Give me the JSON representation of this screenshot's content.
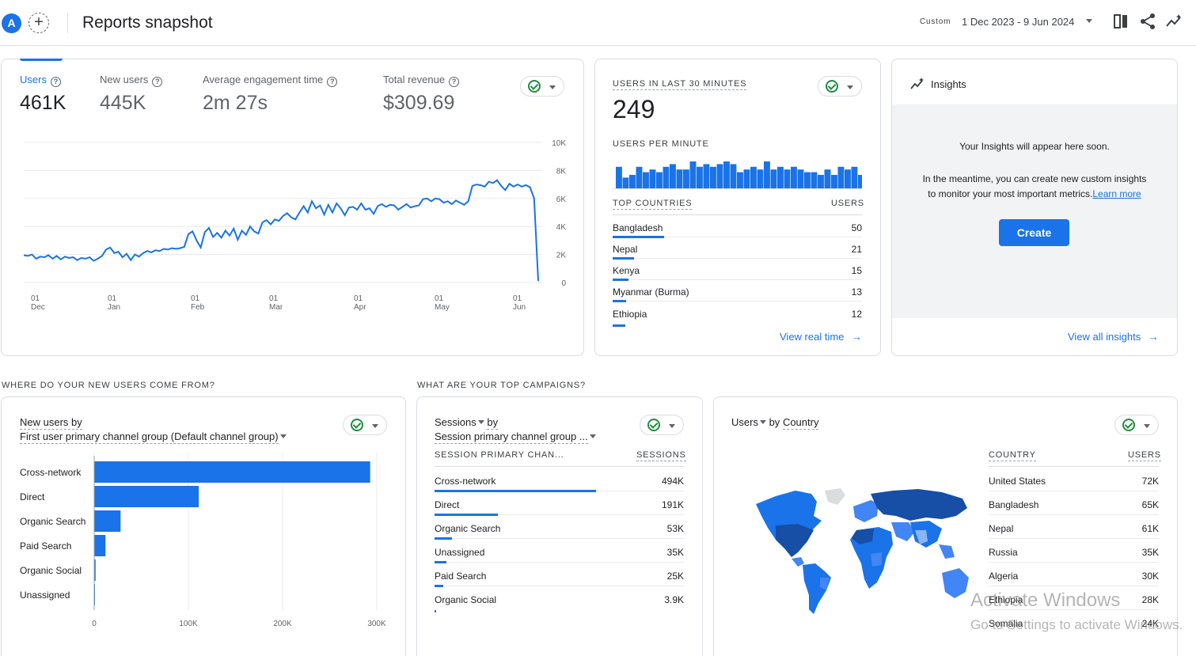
{
  "header": {
    "avatar_letter": "A",
    "add_label": "+",
    "title": "Reports snapshot",
    "date_chip": "Custom",
    "date_range": "1 Dec 2023 - 9 Jun 2024",
    "icons": [
      "compare-icon",
      "share-icon",
      "insights-trend-icon"
    ]
  },
  "overview": {
    "metrics": [
      {
        "label": "Users",
        "value": "461K",
        "active": true
      },
      {
        "label": "New users",
        "value": "445K",
        "active": false
      },
      {
        "label": "Average engagement time",
        "value": "2m 27s",
        "active": false
      },
      {
        "label": "Total revenue",
        "value": "$309.69",
        "active": false
      }
    ],
    "chart_data": {
      "type": "line",
      "series": [
        {
          "values": [
            1950,
            1900,
            2000,
            1700,
            1850,
            1800,
            1950,
            1700,
            1900,
            1650,
            1850,
            1750,
            1800,
            1600,
            1750,
            1700,
            1800,
            1550,
            1700,
            1900,
            2350,
            2500,
            2100,
            2200,
            1800,
            2050,
            1600,
            2000,
            1850,
            2100,
            2250,
            2150,
            2300,
            2250,
            2400,
            2350,
            2450,
            2400,
            2450,
            2550,
            3450,
            3650,
            3000,
            2500,
            3600,
            3900,
            3250,
            3550,
            3200,
            3700,
            3350,
            3850,
            3050,
            3700,
            3400,
            4000,
            3650,
            3500,
            4300,
            4450,
            4150,
            4500,
            4400,
            4750,
            4950,
            4650,
            4500,
            5000,
            5450,
            5000,
            5800,
            5300,
            5500,
            4850,
            5550,
            5000,
            5650,
            5300,
            4800,
            5350,
            5400,
            5200,
            5650,
            5200,
            5300,
            4900,
            5450,
            5600,
            5400,
            5550,
            5500,
            5200,
            5400,
            5600,
            5350,
            5450,
            5500,
            5950,
            6000,
            5800,
            6000,
            5950,
            5700,
            5800,
            5600,
            5850,
            5700,
            5550,
            5800,
            6900,
            7000,
            6950,
            6850,
            7200,
            7100,
            7300,
            6900,
            6600,
            7050,
            6850,
            7000,
            6850,
            6950,
            6800,
            6000,
            100
          ]
        }
      ],
      "x_tick_labels": [
        {
          "day": "01",
          "month": "Dec"
        },
        {
          "day": "01",
          "month": "Jan"
        },
        {
          "day": "01",
          "month": "Feb"
        },
        {
          "day": "01",
          "month": "Mar"
        },
        {
          "day": "01",
          "month": "Apr"
        },
        {
          "day": "01",
          "month": "May"
        },
        {
          "day": "01",
          "month": "Jun"
        }
      ],
      "y_ticks": [
        "10K",
        "8K",
        "6K",
        "4K",
        "2K",
        "0"
      ],
      "ylim": [
        0,
        10000
      ],
      "grid": true
    }
  },
  "realtime": {
    "title": "USERS IN LAST 30 MINUTES",
    "value": "249",
    "per_minute_label": "USERS PER MINUTE",
    "per_minute": [
      8,
      4,
      5,
      8,
      6,
      7,
      6,
      8,
      9,
      7,
      7,
      10,
      8,
      9,
      8,
      9,
      10,
      9,
      6,
      7,
      8,
      7,
      10,
      7,
      8,
      7,
      8,
      7,
      6,
      6,
      5,
      7,
      5,
      8,
      7,
      8,
      5,
      6,
      6,
      5
    ],
    "countries_header": "TOP COUNTRIES",
    "users_header": "USERS",
    "rows": [
      {
        "name": "Bangladesh",
        "value": "50",
        "share": 1.0
      },
      {
        "name": "Nepal",
        "value": "21",
        "share": 0.42
      },
      {
        "name": "Kenya",
        "value": "15",
        "share": 0.3
      },
      {
        "name": "Myanmar (Burma)",
        "value": "13",
        "share": 0.26
      },
      {
        "name": "Ethiopia",
        "value": "12",
        "share": 0.24
      }
    ],
    "link": "View real time"
  },
  "insights": {
    "title": "Insights",
    "headline": "Your Insights will appear here soon.",
    "body_1": "In the meantime, you can create new custom insights",
    "body_2": "to monitor your most important metrics.",
    "learn_more": "Learn more",
    "create": "Create",
    "link": "View all insights"
  },
  "sections": {
    "new_users_q": "WHERE DO YOUR NEW USERS COME FROM?",
    "campaigns_q": "WHAT ARE YOUR TOP CAMPAIGNS?"
  },
  "new_users": {
    "title_1": "New users by",
    "title_2": "First user primary channel group (Default channel group)",
    "chart_data": {
      "type": "bar",
      "categories": [
        "Cross-network",
        "Direct",
        "Organic Search",
        "Paid Search",
        "Organic Social",
        "Unassigned"
      ],
      "values": [
        293000,
        111000,
        28000,
        12000,
        1500,
        800
      ],
      "x_ticks": [
        "0",
        "100K",
        "200K",
        "300K"
      ],
      "xlim": [
        0,
        300000
      ]
    }
  },
  "sessions": {
    "title_1": "Sessions",
    "title_1b": "by",
    "title_2": "Session primary channel group ...",
    "col_1": "SESSION PRIMARY CHAN...",
    "col_2": "SESSIONS",
    "rows": [
      {
        "name": "Cross-network",
        "value": "494K",
        "share": 1.0
      },
      {
        "name": "Direct",
        "value": "191K",
        "share": 0.39
      },
      {
        "name": "Organic Search",
        "value": "53K",
        "share": 0.11
      },
      {
        "name": "Unassigned",
        "value": "35K",
        "share": 0.07
      },
      {
        "name": "Paid Search",
        "value": "25K",
        "share": 0.05
      },
      {
        "name": "Organic Social",
        "value": "3.9K",
        "share": 0.01
      }
    ]
  },
  "country": {
    "title_1": "Users",
    "title_2": "by",
    "title_3": "Country",
    "col_1": "COUNTRY",
    "col_2": "USERS",
    "rows": [
      {
        "name": "United States",
        "value": "72K"
      },
      {
        "name": "Bangladesh",
        "value": "65K"
      },
      {
        "name": "Nepal",
        "value": "61K"
      },
      {
        "name": "Russia",
        "value": "35K"
      },
      {
        "name": "Algeria",
        "value": "30K"
      },
      {
        "name": "Ethiopia",
        "value": "28K"
      },
      {
        "name": "Somalia",
        "value": "24K"
      }
    ]
  },
  "watermark": {
    "line_1": "Activate Windows",
    "line_2": "Go to Settings to activate Windows."
  },
  "colors": {
    "accent": "#1a73e8",
    "check": "#1e8e3e"
  }
}
